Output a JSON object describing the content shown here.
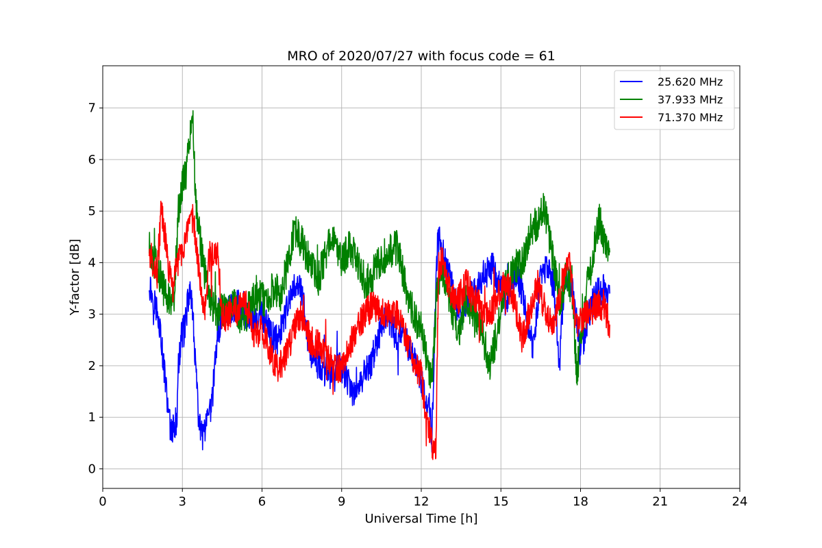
{
  "chart_data": {
    "type": "line",
    "title": "MRO of 2020/07/27 with focus code = 61",
    "xlabel": "Universal Time [h]",
    "ylabel": "Y-factor [dB]",
    "xlim": [
      0,
      24
    ],
    "ylim": [
      -0.38,
      7.82
    ],
    "xticks": [
      "0",
      "3",
      "6",
      "9",
      "12",
      "15",
      "18",
      "21",
      "24"
    ],
    "yticks": [
      "0",
      "1",
      "2",
      "3",
      "4",
      "5",
      "6",
      "7"
    ],
    "grid": true,
    "legend_position": "top-right",
    "series": [
      {
        "name": "25.620 MHz",
        "color": "#0000ff",
        "noise": 0.3,
        "x": [
          1.75,
          1.9,
          2.1,
          2.3,
          2.45,
          2.55,
          2.7,
          2.8,
          2.85,
          2.95,
          3.1,
          3.2,
          3.3,
          3.45,
          3.6,
          3.75,
          3.9,
          4.1,
          4.3,
          4.5,
          4.8,
          5.1,
          5.4,
          5.7,
          6.0,
          6.3,
          6.6,
          6.9,
          7.2,
          7.4,
          7.6,
          7.8,
          8.0,
          8.3,
          8.6,
          8.9,
          9.2,
          9.5,
          9.8,
          10.1,
          10.4,
          10.7,
          11.0,
          11.3,
          11.6,
          11.9,
          12.1,
          12.3,
          12.4,
          12.5,
          12.6,
          12.7,
          12.9,
          13.2,
          13.5,
          13.8,
          14.1,
          14.4,
          14.7,
          15.0,
          15.3,
          15.6,
          15.9,
          16.2,
          16.5,
          16.8,
          17.0,
          17.2,
          17.4,
          17.7,
          18.0,
          18.3,
          18.6,
          18.9,
          19.1
        ],
        "y": [
          3.6,
          3.3,
          3.0,
          2.0,
          1.2,
          0.8,
          0.8,
          1.0,
          2.0,
          2.5,
          2.8,
          3.2,
          3.5,
          2.5,
          1.0,
          0.6,
          0.8,
          1.2,
          2.5,
          3.0,
          3.1,
          3.2,
          3.0,
          2.8,
          3.0,
          2.6,
          2.5,
          3.0,
          3.5,
          3.7,
          3.0,
          2.3,
          2.1,
          1.9,
          1.8,
          2.0,
          1.7,
          1.4,
          1.8,
          2.0,
          2.6,
          3.0,
          2.6,
          2.6,
          2.3,
          1.9,
          1.5,
          1.2,
          0.6,
          2.5,
          4.3,
          4.5,
          4.0,
          3.5,
          3.0,
          3.3,
          3.5,
          3.8,
          3.9,
          3.5,
          3.3,
          3.8,
          3.2,
          2.3,
          3.8,
          3.9,
          3.5,
          2.0,
          3.8,
          3.5,
          2.2,
          3.0,
          3.4,
          3.5,
          3.4
        ]
      },
      {
        "name": "37.933 MHz",
        "color": "#008000",
        "noise": 0.35,
        "x": [
          1.75,
          1.9,
          2.1,
          2.3,
          2.5,
          2.7,
          2.85,
          3.0,
          3.15,
          3.3,
          3.4,
          3.5,
          3.65,
          3.8,
          4.0,
          4.3,
          4.6,
          4.9,
          5.2,
          5.5,
          5.8,
          6.1,
          6.4,
          6.7,
          7.0,
          7.2,
          7.5,
          7.8,
          8.1,
          8.4,
          8.7,
          9.0,
          9.3,
          9.6,
          9.9,
          10.2,
          10.5,
          10.8,
          11.1,
          11.4,
          11.7,
          12.0,
          12.2,
          12.4,
          12.6,
          12.8,
          13.1,
          13.4,
          13.7,
          14.0,
          14.3,
          14.6,
          14.9,
          15.2,
          15.5,
          15.8,
          16.1,
          16.4,
          16.6,
          16.8,
          17.0,
          17.2,
          17.5,
          17.7,
          17.85,
          18.0,
          18.2,
          18.5,
          18.7,
          18.9,
          19.1
        ],
        "y": [
          4.3,
          4.1,
          3.8,
          3.5,
          3.3,
          3.4,
          5.0,
          5.5,
          5.8,
          6.5,
          6.8,
          5.2,
          4.5,
          3.9,
          3.4,
          3.0,
          3.1,
          3.3,
          2.9,
          3.1,
          3.4,
          3.3,
          3.5,
          3.4,
          4.0,
          4.6,
          4.4,
          4.0,
          3.6,
          4.2,
          4.6,
          4.0,
          4.3,
          4.0,
          3.6,
          3.8,
          4.1,
          4.2,
          4.3,
          3.6,
          3.0,
          2.7,
          2.2,
          1.6,
          3.6,
          3.9,
          3.2,
          2.6,
          3.3,
          2.9,
          2.6,
          2.0,
          2.8,
          3.6,
          3.9,
          4.0,
          4.6,
          4.8,
          5.1,
          4.6,
          4.0,
          3.2,
          3.8,
          3.4,
          1.8,
          2.4,
          3.4,
          4.2,
          4.9,
          4.4,
          4.2
        ]
      },
      {
        "name": "71.370 MHz",
        "color": "#ff0000",
        "noise": 0.3,
        "x": [
          1.75,
          1.9,
          2.05,
          2.2,
          2.35,
          2.5,
          2.65,
          2.8,
          2.95,
          3.1,
          3.25,
          3.4,
          3.55,
          3.7,
          3.85,
          4.0,
          4.2,
          4.35,
          4.5,
          4.8,
          5.1,
          5.4,
          5.7,
          6.0,
          6.3,
          6.6,
          6.9,
          7.2,
          7.5,
          7.8,
          8.1,
          8.4,
          8.7,
          9.0,
          9.3,
          9.6,
          9.9,
          10.2,
          10.5,
          10.8,
          11.1,
          11.4,
          11.7,
          12.0,
          12.2,
          12.4,
          12.55,
          12.65,
          12.8,
          13.1,
          13.4,
          13.7,
          14.0,
          14.3,
          14.6,
          14.9,
          15.2,
          15.5,
          15.8,
          16.1,
          16.4,
          16.7,
          17.0,
          17.2,
          17.4,
          17.6,
          17.8,
          18.0,
          18.3,
          18.6,
          18.9,
          19.1
        ],
        "y": [
          4.2,
          4.0,
          3.8,
          5.0,
          4.5,
          3.8,
          3.5,
          4.0,
          4.2,
          4.4,
          4.6,
          4.9,
          4.2,
          3.6,
          3.0,
          4.1,
          4.2,
          4.1,
          2.9,
          3.0,
          3.1,
          3.2,
          2.6,
          2.7,
          2.3,
          1.9,
          2.2,
          2.7,
          3.0,
          2.5,
          2.4,
          2.2,
          2.0,
          1.9,
          2.4,
          2.8,
          3.0,
          3.2,
          3.0,
          3.1,
          3.0,
          2.6,
          2.1,
          1.8,
          1.0,
          0.5,
          0.3,
          3.9,
          4.1,
          3.4,
          3.3,
          3.6,
          3.3,
          3.1,
          3.0,
          3.4,
          3.6,
          3.3,
          2.5,
          3.1,
          3.6,
          3.0,
          2.8,
          3.4,
          3.8,
          4.0,
          2.8,
          2.9,
          3.0,
          3.2,
          3.1,
          2.8
        ]
      }
    ]
  }
}
